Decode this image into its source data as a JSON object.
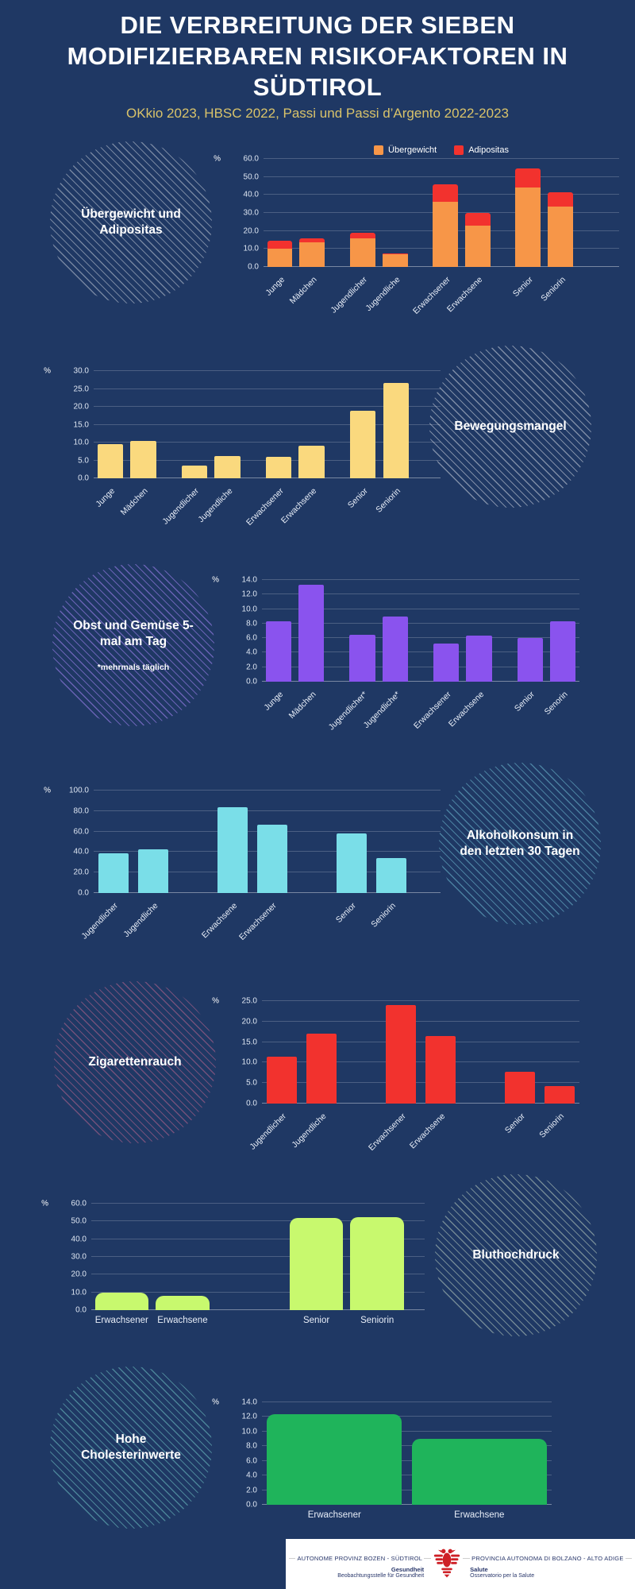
{
  "page": {
    "title": "DIE VERBREITUNG DER SIEBEN MODIFIZIERBAREN RISIKOFAKTOREN IN SÜDTIROL",
    "subtitle": "OKkio 2023, HBSC 2022, Passi und Passi d’Argento 2022-2023",
    "background_color": "#1F3864",
    "title_color": "#FFFFFF",
    "subtitle_color": "#D9C36A"
  },
  "chart_data": [
    {
      "id": "uebergewicht-adipositas",
      "type": "bar",
      "stacked": true,
      "circle_label": "Übergewicht und Adipositas",
      "circle_note": null,
      "circle_side": "left",
      "hatch_color": "rgba(255,255,255,0.38)",
      "ylabel": "%",
      "ylim": [
        0,
        60
      ],
      "tick_step": 10,
      "grid": true,
      "legend": true,
      "legend_position": "top-center",
      "categories": [
        "Junge",
        "Mädchen",
        "Jugendlicher",
        "Jugendliche",
        "Erwachsener",
        "Erwachsene",
        "Senior",
        "Seniorin"
      ],
      "series": [
        {
          "name": "Übergewicht",
          "color": "#F79648",
          "values": [
            10.0,
            13.5,
            16.0,
            7.0,
            36.0,
            23.0,
            44.0,
            33.5
          ]
        },
        {
          "name": "Adipositas",
          "color": "#F2322E",
          "values": [
            4.5,
            2.5,
            3.0,
            0.5,
            10.0,
            7.0,
            10.5,
            8.0
          ]
        }
      ],
      "gaps_after": [
        1,
        3,
        5
      ],
      "labels_rotated": true
    },
    {
      "id": "bewegungsmangel",
      "type": "bar",
      "circle_label": "Bewegungsmangel",
      "circle_note": null,
      "circle_side": "right",
      "hatch_color": "rgba(255,255,255,0.42)",
      "ylabel": "%",
      "ylim": [
        0,
        30
      ],
      "tick_step": 5,
      "grid": true,
      "legend": false,
      "color": "#FAD97E",
      "categories": [
        "Junge",
        "Mädchen",
        "Jugendlicher",
        "Jugendliche",
        "Erwachsener",
        "Erwachsene",
        "Senior",
        "Seniorin"
      ],
      "values": [
        9.5,
        10.5,
        3.5,
        6.3,
        5.9,
        9.2,
        19.0,
        26.7
      ],
      "gaps_after": [
        1,
        3,
        5
      ],
      "labels_rotated": true
    },
    {
      "id": "obst-und-gemuese",
      "type": "bar",
      "circle_label": "Obst und Gemüse 5-mal am Tag",
      "circle_note": "*mehrmals täglich",
      "circle_side": "left",
      "hatch_color": "rgba(164,132,244,0.55)",
      "ylabel": "%",
      "ylim": [
        0,
        14
      ],
      "tick_step": 2,
      "grid": true,
      "legend": false,
      "color": "#8A53EE",
      "categories": [
        "Junge",
        "Mädchen",
        "Jugendlicher*",
        "Jugendliche*",
        "Erwachsener",
        "Erwachsene",
        "Senior",
        "Senorin"
      ],
      "values": [
        8.3,
        13.3,
        6.5,
        9.0,
        5.2,
        6.3,
        6.0,
        8.3
      ],
      "gaps_after": [
        1,
        3,
        5
      ],
      "labels_rotated": true
    },
    {
      "id": "alkoholkonsum",
      "type": "bar",
      "circle_label": "Alkoholkonsum in den letzten 30 Tagen",
      "circle_note": null,
      "circle_side": "right",
      "hatch_color": "rgba(126,214,232,0.45)",
      "ylabel": "%",
      "ylim": [
        0,
        100
      ],
      "tick_step": 20,
      "grid": true,
      "legend": false,
      "color": "#7ADEE8",
      "categories": [
        "Jugendlicher",
        "Jugendliche",
        "Erwachsene",
        "Erwachsener",
        "Senior",
        "Seniorin"
      ],
      "values": [
        38.5,
        43.0,
        84.0,
        67.0,
        58.5,
        34.5
      ],
      "gaps_after": [
        1,
        3
      ],
      "labels_rotated": true
    },
    {
      "id": "zigarettenrauch",
      "type": "bar",
      "circle_label": "Zigarettenrauch",
      "circle_note": null,
      "circle_side": "left",
      "hatch_color": "rgba(216,110,150,0.45)",
      "ylabel": "%",
      "ylim": [
        0,
        25
      ],
      "tick_step": 5,
      "grid": true,
      "legend": false,
      "color": "#F2322E",
      "categories": [
        "Jugendlicher",
        "Jugendliche",
        "Erwachsener",
        "Erwachsene",
        "Senior",
        "Seniorin"
      ],
      "values": [
        11.5,
        17.0,
        24.0,
        16.5,
        7.8,
        4.3
      ],
      "gaps_after": [
        1,
        3
      ],
      "labels_rotated": true
    },
    {
      "id": "bluthochdruck",
      "type": "bar",
      "circle_label": "Bluthochdruck",
      "circle_note": null,
      "circle_side": "right",
      "hatch_color": "rgba(226,244,214,0.42)",
      "ylabel": "%",
      "ylim": [
        0,
        60
      ],
      "tick_step": 10,
      "grid": true,
      "legend": false,
      "color": "#C8F96E",
      "categories": [
        "Erwachsener",
        "Erwachsene",
        "Senior",
        "Seniorin"
      ],
      "values": [
        10.0,
        8.0,
        52.0,
        52.5
      ],
      "gaps_after": [
        1
      ],
      "labels_rotated": false
    },
    {
      "id": "hohe-cholesterinwerte",
      "type": "bar",
      "circle_label": "Hohe Cholesterinwerte",
      "circle_note": null,
      "circle_side": "left",
      "hatch_color": "rgba(126,222,214,0.45)",
      "ylabel": "%",
      "ylim": [
        0,
        14
      ],
      "tick_step": 2,
      "grid": true,
      "legend": false,
      "color": "#1FB45B",
      "categories": [
        "Erwachsener",
        "Erwachsene"
      ],
      "values": [
        12.4,
        9.0
      ],
      "gaps_after": [],
      "labels_rotated": false
    }
  ],
  "footer": {
    "left_title": "AUTONOME PROVINZ BOZEN - SÜDTIROL",
    "left_bold": "Gesundheit",
    "left_sub": "Beobachtungsstelle für Gesundheit",
    "right_title": "PROVINCIA AUTONOMA DI BOLZANO - ALTO ADIGE",
    "right_bold": "Salute",
    "right_sub": "Osservatorio per la Salute",
    "eagle_color": "#CE2027"
  }
}
